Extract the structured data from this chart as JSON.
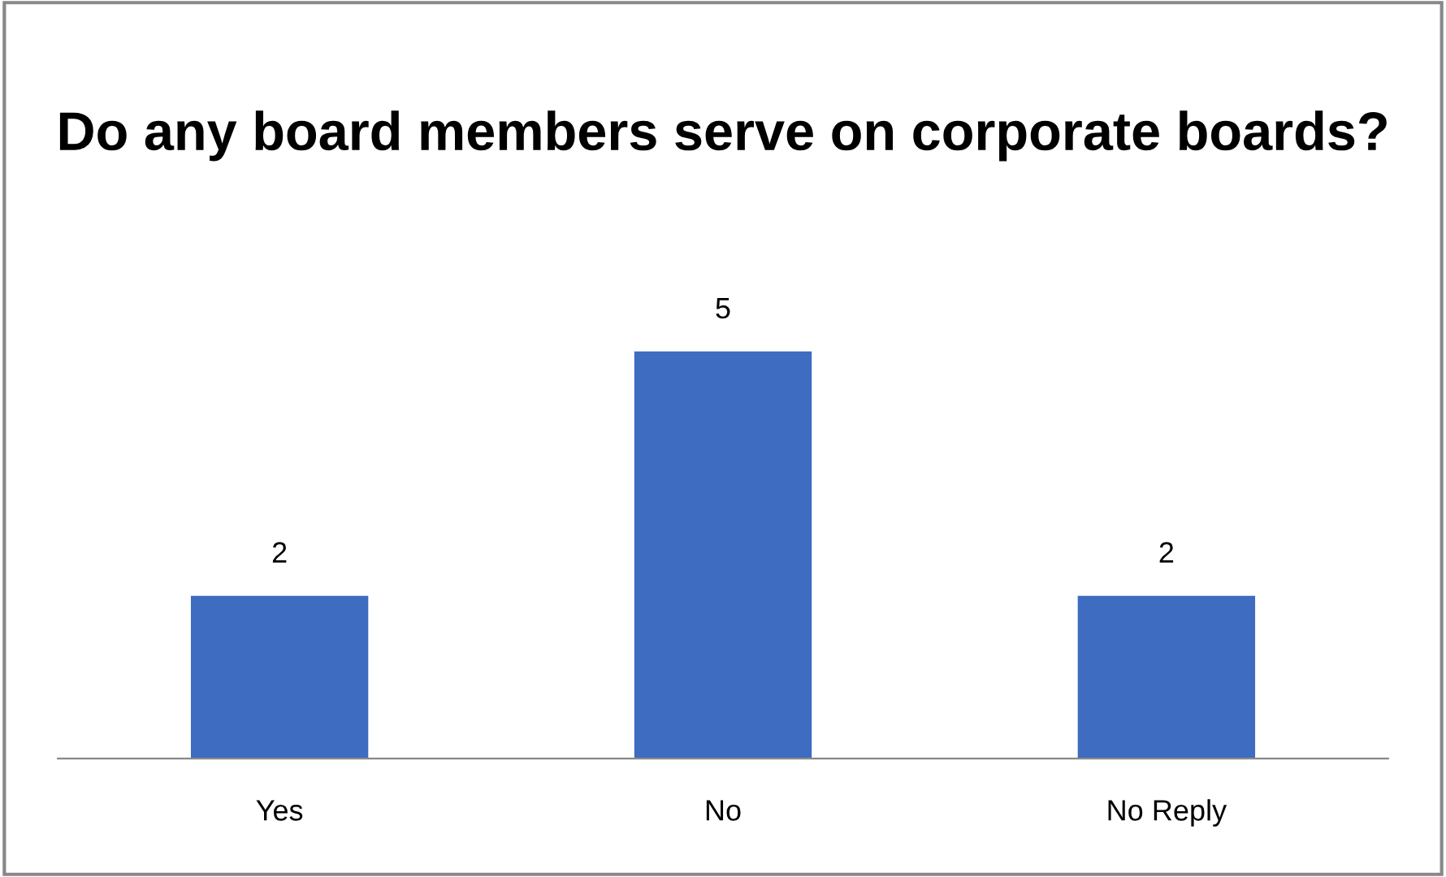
{
  "chart_data": {
    "type": "bar",
    "title": "Do any board members serve on corporate boards?",
    "categories": [
      "Yes",
      "No",
      "No Reply"
    ],
    "values": [
      2,
      5,
      2
    ],
    "color": "#3d6cc0",
    "data_labels": true,
    "tick_labels": "x",
    "grid": false,
    "legend": false
  }
}
